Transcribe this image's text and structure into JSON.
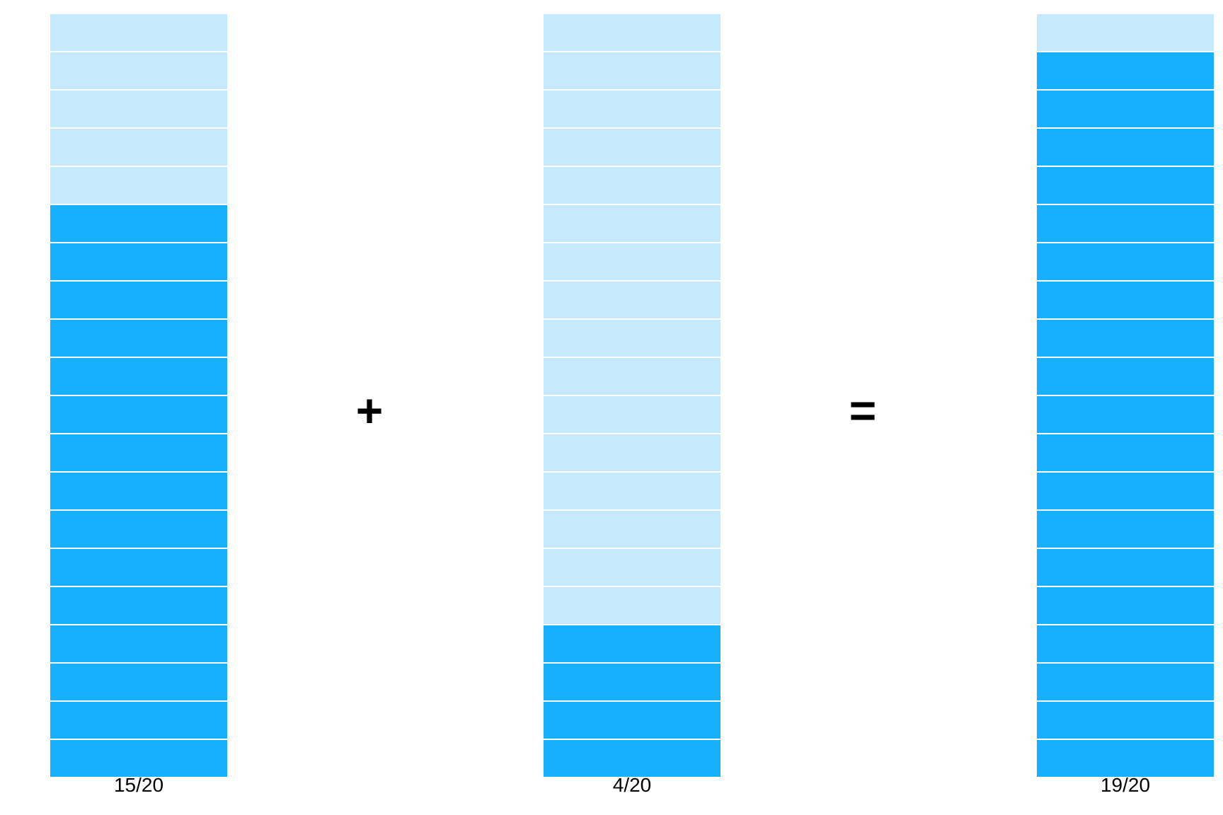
{
  "colors": {
    "filled": "#17b0ff",
    "empty": "#c5eafc",
    "divider": "#ffffff",
    "text": "#000000"
  },
  "bars": [
    {
      "label": "15/20",
      "filled": 15,
      "total": 20
    },
    {
      "label": "4/20",
      "filled": 4,
      "total": 20
    },
    {
      "label": "19/20",
      "filled": 19,
      "total": 20
    }
  ],
  "operators": {
    "plus": "+",
    "equals": "="
  }
}
